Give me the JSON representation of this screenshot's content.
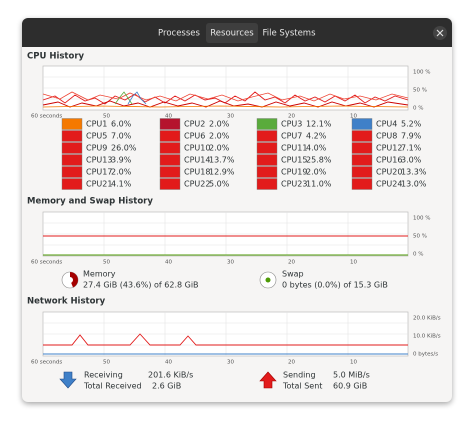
{
  "tabs": [
    "Processes",
    "Resources",
    "File Systems"
  ],
  "cpu": {
    "title": "CPU History",
    "y_labels": [
      "100 %",
      "50 %",
      "0 %"
    ],
    "x_labels": [
      "60 seconds",
      "50",
      "40",
      "30",
      "20",
      "10"
    ],
    "cpus": [
      {
        "name": "CPU1",
        "value": "6.0%",
        "color": "#f57900"
      },
      {
        "name": "CPU2",
        "value": "2.0%",
        "color": "#b5132d"
      },
      {
        "name": "CPU3",
        "value": "12.1%",
        "color": "#5aab3c"
      },
      {
        "name": "CPU4",
        "value": "5.2%",
        "color": "#3f80c8"
      },
      {
        "name": "CPU5",
        "value": "7.0%",
        "color": "#e21b1b"
      },
      {
        "name": "CPU6",
        "value": "2.0%",
        "color": "#e21b1b"
      },
      {
        "name": "CPU7",
        "value": "4.2%",
        "color": "#e21b1b"
      },
      {
        "name": "CPU8",
        "value": "7.9%",
        "color": "#e21b1b"
      },
      {
        "name": "CPU9",
        "value": "26.0%",
        "color": "#e21b1b"
      },
      {
        "name": "CPU10",
        "value": "2.0%",
        "color": "#e21b1b"
      },
      {
        "name": "CPU11",
        "value": "4.0%",
        "color": "#e21b1b"
      },
      {
        "name": "CPU12",
        "value": "7.1%",
        "color": "#e21b1b"
      },
      {
        "name": "CPU13",
        "value": "3.9%",
        "color": "#e21b1b"
      },
      {
        "name": "CPU14",
        "value": "13.7%",
        "color": "#e21b1b"
      },
      {
        "name": "CPU15",
        "value": "25.8%",
        "color": "#e21b1b"
      },
      {
        "name": "CPU16",
        "value": "3.0%",
        "color": "#e21b1b"
      },
      {
        "name": "CPU17",
        "value": "2.0%",
        "color": "#e21b1b"
      },
      {
        "name": "CPU18",
        "value": "12.9%",
        "color": "#e21b1b"
      },
      {
        "name": "CPU19",
        "value": "2.0%",
        "color": "#e21b1b"
      },
      {
        "name": "CPU20",
        "value": "13.3%",
        "color": "#e21b1b"
      },
      {
        "name": "CPU21",
        "value": "4.1%",
        "color": "#e21b1b"
      },
      {
        "name": "CPU22",
        "value": "5.0%",
        "color": "#e21b1b"
      },
      {
        "name": "CPU23",
        "value": "11.0%",
        "color": "#e21b1b"
      },
      {
        "name": "CPU24",
        "value": "13.0%",
        "color": "#e21b1b"
      }
    ]
  },
  "memory": {
    "title": "Memory and Swap History",
    "y_labels": [
      "100 %",
      "50 %",
      "0 %"
    ],
    "x_labels": [
      "60 seconds",
      "50",
      "40",
      "30",
      "20",
      "10"
    ],
    "memory_label": "Memory",
    "memory_detail": "27.4 GiB (43.6%) of 62.8 GiB",
    "swap_label": "Swap",
    "swap_detail": "0 bytes (0.0%) of 15.3 GiB"
  },
  "network": {
    "title": "Network History",
    "y_labels": [
      "20.0 KiB/s",
      "10.0 KiB/s",
      "0 bytes/s"
    ],
    "x_labels": [
      "60 seconds",
      "50",
      "40",
      "30",
      "20",
      "10"
    ],
    "receiving_label": "Receiving",
    "receiving_value": "201.6 KiB/s",
    "total_received_label": "Total Received",
    "total_received_value": "2.6 GiB",
    "sending_label": "Sending",
    "sending_value": "5.0 MiB/s",
    "total_sent_label": "Total Sent",
    "total_sent_value": "60.9 GiB"
  }
}
